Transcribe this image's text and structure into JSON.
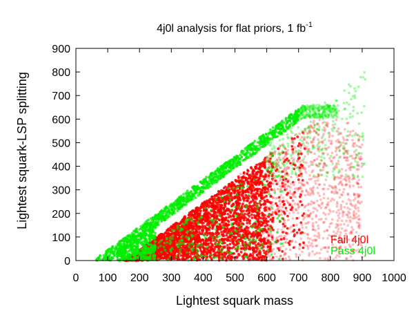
{
  "chart_data": {
    "type": "scatter",
    "title": "4j0l analysis for flat priors, 1 fb",
    "title_superscript": "-1",
    "xlabel": "Lightest squark mass",
    "ylabel": "Lightest squark-LSP splitting",
    "xlim": [
      0,
      1000
    ],
    "ylim": [
      0,
      900
    ],
    "x_ticks": [
      "0",
      "100",
      "200",
      "300",
      "400",
      "500",
      "600",
      "700",
      "800",
      "900",
      "1000"
    ],
    "y_ticks": [
      "0",
      "100",
      "200",
      "300",
      "400",
      "500",
      "600",
      "700",
      "800",
      "900"
    ],
    "legend_position": "bottom-right",
    "grid": false,
    "series": [
      {
        "name": "Fail 4j0l",
        "color": "#ff0000",
        "region": {
          "x_min": 150,
          "x_max": 900,
          "upper_slope": 0.92,
          "upper_offset": -130,
          "lower_bound": 0
        }
      },
      {
        "name": "Pass 4j0l",
        "color": "#00ee00",
        "region": {
          "x_min": 60,
          "x_max": 900,
          "band_upper_slope": 1.0,
          "band_upper_offset": -60,
          "band_width": 40
        }
      }
    ]
  }
}
